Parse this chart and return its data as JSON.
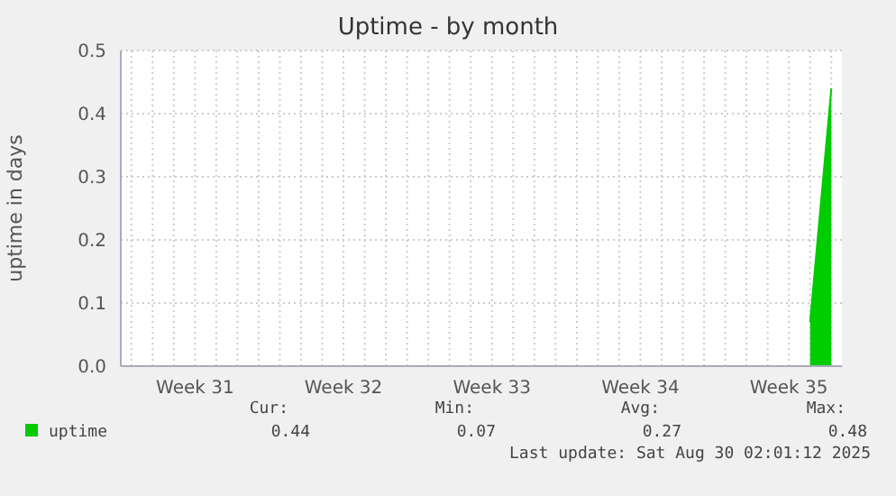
{
  "chart_data": {
    "type": "area",
    "title": "Uptime - by month",
    "ylabel": "uptime in days",
    "categories": [
      null,
      null,
      null,
      "Week 31",
      null,
      null,
      null,
      null,
      null,
      null,
      "Week 32",
      null,
      null,
      null,
      null,
      null,
      null,
      "Week 33",
      null,
      null,
      null,
      null,
      null,
      null,
      "Week 34",
      null,
      null,
      null,
      null,
      null,
      null,
      "Week 35",
      null,
      null
    ],
    "series": [
      {
        "name": "uptime",
        "color": "#00cc00",
        "values": [
          null,
          null,
          null,
          null,
          null,
          null,
          null,
          null,
          null,
          null,
          null,
          null,
          null,
          null,
          null,
          null,
          null,
          null,
          null,
          null,
          null,
          null,
          null,
          null,
          null,
          null,
          null,
          null,
          null,
          null,
          null,
          null,
          0.07,
          0.44
        ]
      }
    ],
    "ylim": [
      0,
      0.5
    ],
    "yticks": [
      {
        "value": 0,
        "label": "0.0"
      },
      {
        "value": 0.1,
        "label": "0.1"
      },
      {
        "value": 0.2,
        "label": "0.2"
      },
      {
        "value": 0.3,
        "label": "0.3"
      },
      {
        "value": 0.4,
        "label": "0.4"
      },
      {
        "value": 0.5,
        "label": "0.5"
      }
    ],
    "grid": true,
    "legend": "bottom",
    "annotations": [
      "Cur:",
      "Min:",
      "Avg:",
      "Max:",
      "0.44",
      "0.07",
      "0.27",
      "0.48",
      "Last update: Sat Aug 30 02:01:12 2025"
    ]
  }
}
